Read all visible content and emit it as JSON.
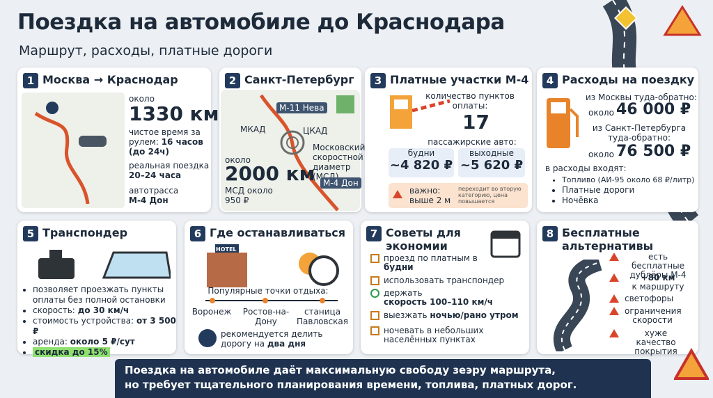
{
  "header": {
    "title": "Поездка на автомобиле до Краснодара",
    "subtitle": "Маршрут, расходы, платные дороги"
  },
  "card1": {
    "number": "1",
    "title": "Москва → Краснодар",
    "about": "около",
    "distance": "1330 км",
    "drive_label": "чистое время за рулем:",
    "drive_value": "16 часов (до 24ч)",
    "real_label": "реальная поездка",
    "real_value": "20–24 часа",
    "road_label": "автотрасса",
    "road_value": "М-4 Дон"
  },
  "card2": {
    "number": "2",
    "title": "Санкт-Петербург",
    "map_labels": [
      "М-11 Нева",
      "МКАД",
      "ЦКАД",
      "Московский скоростной диаметр (МСД)",
      "М-4 Дон"
    ],
    "about": "около",
    "distance": "2000 км",
    "msd": "МСД около 950 ₽"
  },
  "card3": {
    "number": "3",
    "title": "Платные участки М-4",
    "points_label": "количество пунктов оплаты:",
    "points": "17",
    "cars_label": "пассажирские авто:",
    "weekday_label": "будни",
    "weekday_price": "~4 820 ₽",
    "weekend_label": "выходные",
    "weekend_price": "~5 620 ₽",
    "warning": "важно: выше 2 м",
    "warning_note": "переходит во вторую категорию, цена повышается"
  },
  "card4": {
    "number": "4",
    "title": "Расходы на поездку",
    "moscow_label": "из Москвы туда-обратно:",
    "moscow_about": "около",
    "moscow_value": "46 000 ₽",
    "spb_label": "из Санкт-Петербурга туда-обратно:",
    "spb_about": "около",
    "spb_value": "76 500 ₽",
    "includes": "в расходы входят:",
    "items": [
      "Топливо (АИ-95 около 68 ₽/литр)",
      "Платные дороги",
      "Ночёвка"
    ]
  },
  "card5": {
    "number": "5",
    "title": "Транспондер",
    "intro": "позволяет проезжать пункты оплаты без полной остановки",
    "speed_label": "скорость:",
    "speed_value": "до 30 км/ч",
    "price_label": "стоимость устройства:",
    "price_value": "от 3 500 ₽",
    "rent_label": "аренда:",
    "rent_value": "около 5 ₽/сут",
    "discount": "скидка до 15%"
  },
  "card6": {
    "number": "6",
    "title": "Где останавливаться",
    "hotel": "HOTEL",
    "points_label": "Популярные точки отдыха:",
    "cities": [
      "Воронеж",
      "Ростов-на-Дону",
      "станица Павловская"
    ],
    "advice": "рекомендуется делить дорогу на",
    "advice_bold": "два дня"
  },
  "card7": {
    "number": "7",
    "title": "Советы для экономии",
    "tip1": "проезд по платным в",
    "tip1_bold": "будни",
    "tip2": "использовать транспондер",
    "tip3": "держать",
    "tip3_bold": "скорость 100–110 км/ч",
    "tip4": "выезжать",
    "tip4_bold": "ночью/рано утром",
    "tip5": "ночевать в небольших населённых пунктах"
  },
  "card8": {
    "number": "8",
    "title": "Бесплатные альтернативы",
    "item1": "есть бесплатные дублёры М-4",
    "item2_bold": "+80 км",
    "item2": "к маршруту",
    "item3": "светофоры",
    "item4": "ограничения скорости",
    "item5": "хуже качество покрытия"
  },
  "footer": {
    "line1": "Поездка на автомобиле даёт максимальную свободу зеэру маршрута,",
    "line2": "но требует тщательного планирования времени, топлива, платных дорог."
  }
}
